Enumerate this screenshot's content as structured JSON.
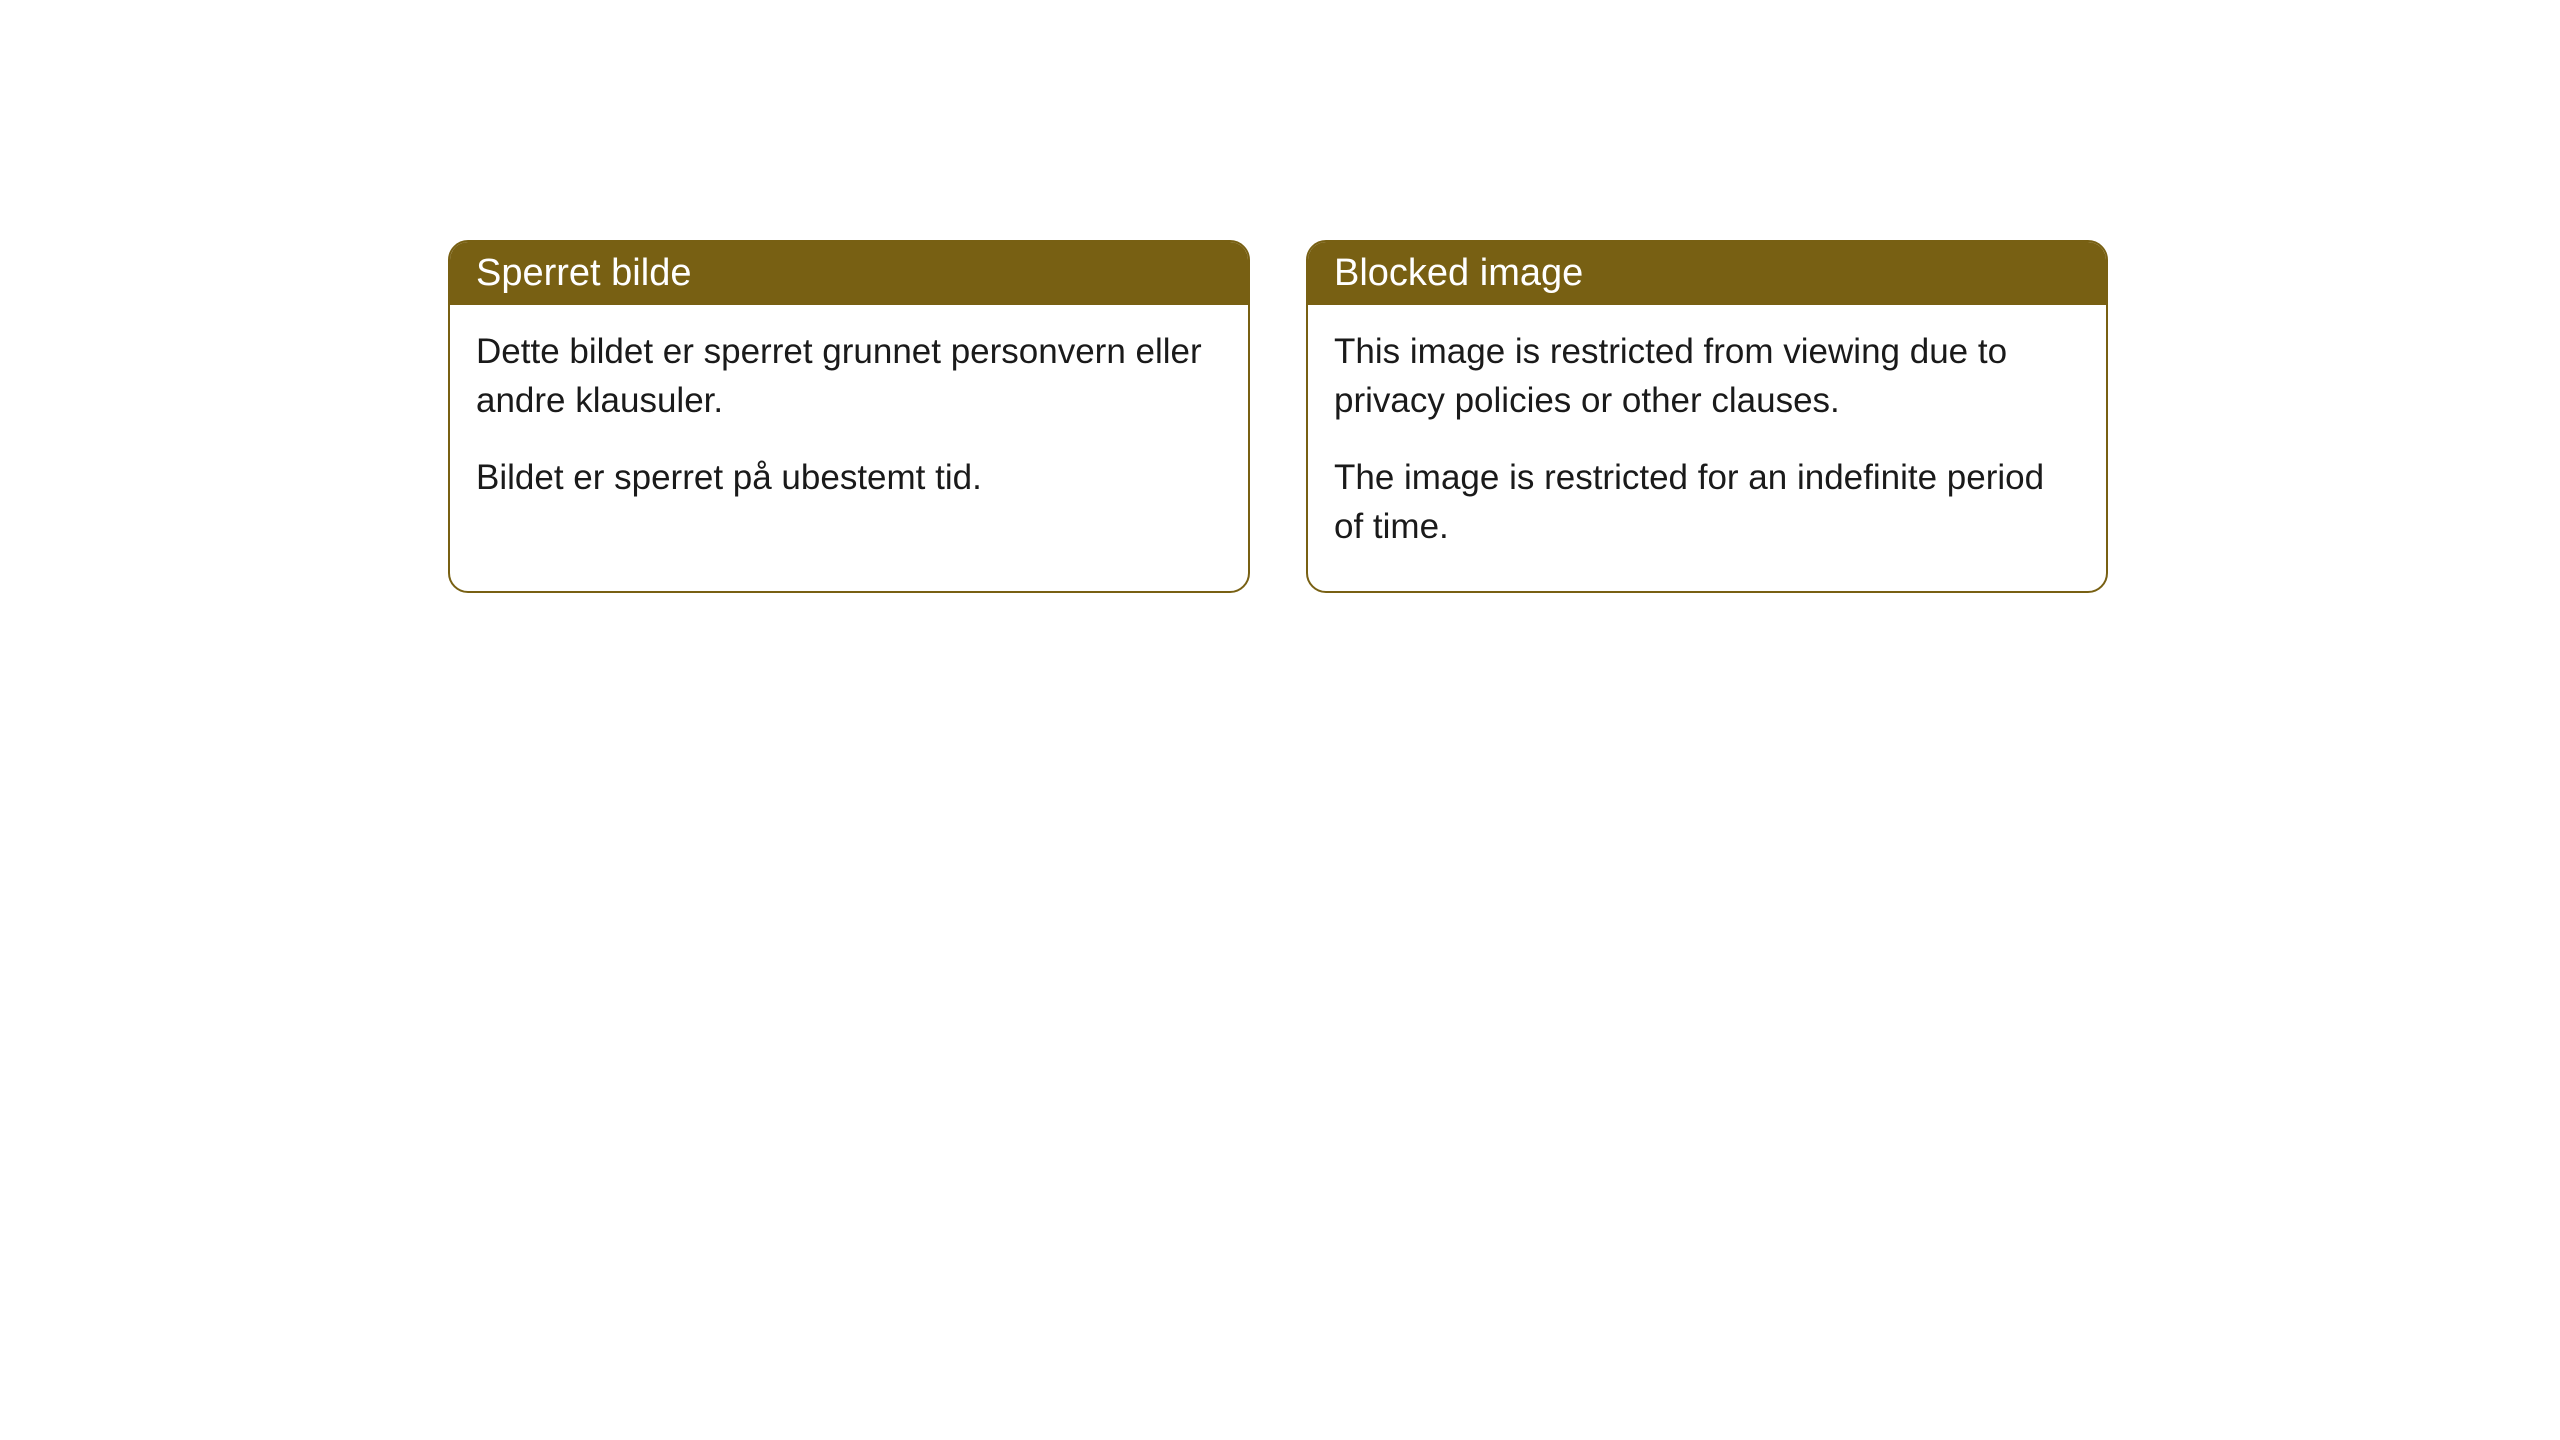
{
  "cards": [
    {
      "title": "Sperret bilde",
      "paragraph1": "Dette bildet er sperret grunnet personvern eller andre klausuler.",
      "paragraph2": "Bildet er sperret på ubestemt tid."
    },
    {
      "title": "Blocked image",
      "paragraph1": "This image is restricted from viewing due to privacy policies or other clauses.",
      "paragraph2": "The image is restricted for an indefinite period of time."
    }
  ],
  "styling": {
    "header_background": "#786013",
    "header_text_color": "#ffffff",
    "border_color": "#786013",
    "body_background": "#ffffff",
    "body_text_color": "#1a1a1a",
    "border_radius": "20px",
    "header_fontsize": 38,
    "body_fontsize": 35
  }
}
